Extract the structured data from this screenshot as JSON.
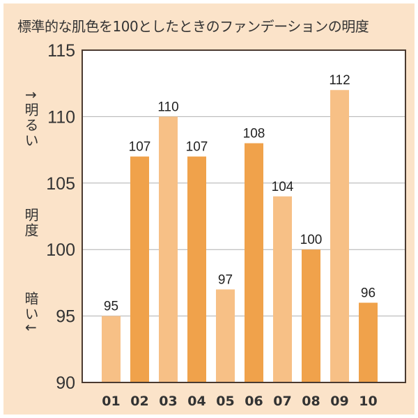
{
  "chart_data": {
    "type": "bar",
    "title": "標準的な肌色を100としたときのファンデーションの明度",
    "categories": [
      "01",
      "02",
      "03",
      "04",
      "05",
      "06",
      "07",
      "08",
      "09",
      "10"
    ],
    "values": [
      95,
      107,
      110,
      107,
      97,
      108,
      104,
      100,
      112,
      96
    ],
    "ylim": [
      90,
      115
    ],
    "yticks": [
      90,
      95,
      100,
      105,
      110,
      115
    ],
    "ylabel_top": "↑明るい",
    "ylabel_mid": "明度",
    "ylabel_bottom": "暗い↓",
    "grid": true,
    "colors": {
      "light": "#f7c086",
      "dark": "#f0a24b",
      "background": "#fbe3c9",
      "axis": "#4a3a30",
      "grid": "#b0b0b0"
    },
    "bar_color_pattern": [
      "light",
      "dark",
      "light",
      "dark",
      "light",
      "dark",
      "light",
      "dark",
      "light",
      "dark"
    ]
  }
}
